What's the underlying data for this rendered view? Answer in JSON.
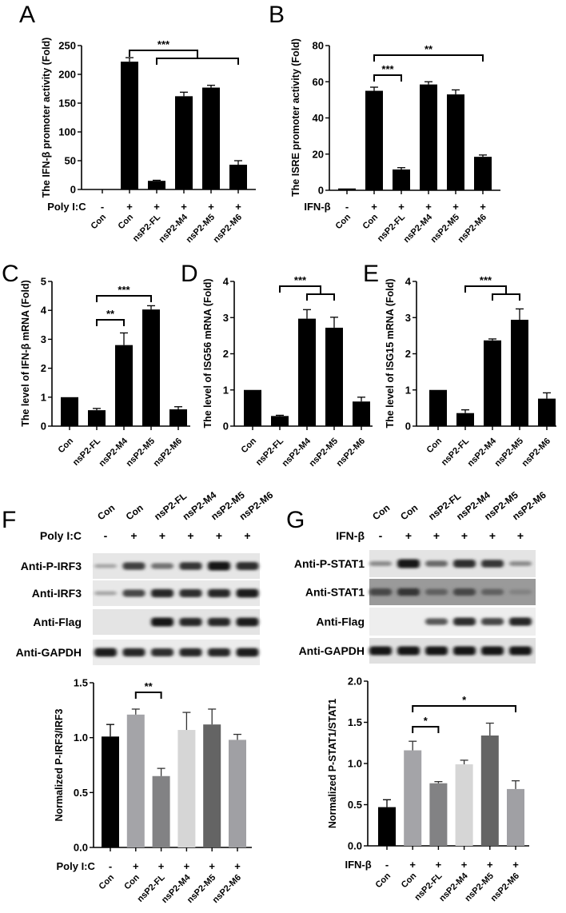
{
  "panels": {
    "A": "A",
    "B": "B",
    "C": "C",
    "D": "D",
    "E": "E",
    "F": "F",
    "G": "G"
  },
  "chart_data": [
    {
      "id": "A",
      "type": "bar",
      "title": "",
      "ylabel": "The IFN-β promoter activity (Fold)",
      "xlabel": "",
      "ylim": [
        0,
        250
      ],
      "yticks": [
        0,
        50,
        100,
        150,
        200,
        250
      ],
      "treatment_label": "Poly I:C",
      "treatment": [
        "-",
        "+",
        "+",
        "+",
        "+",
        "+"
      ],
      "categories": [
        "Con",
        "Con",
        "nsP2-FL",
        "nsP2-M4",
        "nsP2-M5",
        "nsP2-M6"
      ],
      "values": [
        0,
        222,
        15,
        162,
        177,
        43
      ],
      "errors": [
        0,
        7,
        1,
        7,
        4,
        7
      ],
      "colors": [
        "#000000",
        "#000000",
        "#000000",
        "#000000",
        "#000000",
        "#000000"
      ],
      "significance": [
        {
          "label": "***",
          "from": 1,
          "to": [
            2,
            5
          ],
          "type": "nested"
        }
      ],
      "grid": false
    },
    {
      "id": "B",
      "type": "bar",
      "ylabel": "The ISRE promoter activity (Fold)",
      "ylim": [
        0,
        80
      ],
      "yticks": [
        0,
        20,
        40,
        60,
        80
      ],
      "treatment_label": "IFN-β",
      "treatment": [
        "-",
        "+",
        "+",
        "+",
        "+",
        "+"
      ],
      "categories": [
        "Con",
        "Con",
        "nsP2-FL",
        "nsP2-M4",
        "nsP2-M5",
        "nsP2-M6"
      ],
      "values": [
        1,
        55,
        11.5,
        58.5,
        53,
        18.5
      ],
      "errors": [
        0,
        2,
        1,
        1.5,
        2.5,
        1
      ],
      "colors": [
        "#000000",
        "#000000",
        "#000000",
        "#000000",
        "#000000",
        "#000000"
      ],
      "significance": [
        {
          "label": "***",
          "from": 1,
          "to": 2
        },
        {
          "label": "**",
          "from": 1,
          "to": 5
        }
      ],
      "grid": false
    },
    {
      "id": "C",
      "type": "bar",
      "ylabel": "The level of IFN-β mRNA (Fold)",
      "ylim": [
        0,
        5
      ],
      "yticks": [
        0,
        1,
        2,
        3,
        4,
        5
      ],
      "categories": [
        "Con",
        "nsP2-FL",
        "nsP2-M4",
        "nsP2-M5",
        "nsP2-M6"
      ],
      "values": [
        1.0,
        0.55,
        2.8,
        4.03,
        0.58
      ],
      "errors": [
        0,
        0.06,
        0.42,
        0.13,
        0.09
      ],
      "colors": [
        "#000000",
        "#000000",
        "#000000",
        "#000000",
        "#000000"
      ],
      "significance": [
        {
          "label": "**",
          "from": 1,
          "to": 2
        },
        {
          "label": "***",
          "from": 1,
          "to": 3
        }
      ],
      "grid": false
    },
    {
      "id": "D",
      "type": "bar",
      "ylabel": "The level of ISG56 mRNA (Fold)",
      "ylim": [
        0,
        4
      ],
      "yticks": [
        0,
        1,
        2,
        3,
        4
      ],
      "categories": [
        "Con",
        "nsP2-FL",
        "nsP2-M4",
        "nsP2-M5",
        "nsP2-M6"
      ],
      "values": [
        1.0,
        0.28,
        2.97,
        2.72,
        0.68
      ],
      "errors": [
        0,
        0.02,
        0.25,
        0.29,
        0.12
      ],
      "colors": [
        "#000000",
        "#000000",
        "#000000",
        "#000000",
        "#000000"
      ],
      "significance": [
        {
          "label": "***",
          "from": 1,
          "to": [
            2,
            3
          ],
          "type": "nested"
        }
      ],
      "grid": false
    },
    {
      "id": "E",
      "type": "bar",
      "ylabel": "The level of ISG15 mRNA (Fold)",
      "ylim": [
        0,
        4
      ],
      "yticks": [
        0,
        1,
        2,
        3,
        4
      ],
      "categories": [
        "Con",
        "nsP2-FL",
        "nsP2-M4",
        "nsP2-M5",
        "nsP2-M6"
      ],
      "values": [
        1.0,
        0.36,
        2.37,
        2.94,
        0.76
      ],
      "errors": [
        0,
        0.09,
        0.04,
        0.3,
        0.16
      ],
      "colors": [
        "#000000",
        "#000000",
        "#000000",
        "#000000",
        "#000000"
      ],
      "significance": [
        {
          "label": "***",
          "from": 1,
          "to": [
            2,
            3
          ],
          "type": "nested"
        }
      ],
      "grid": false
    },
    {
      "id": "F-quant",
      "type": "bar",
      "ylabel": "Normalized P-IRF3/IRF3",
      "ylim": [
        0,
        1.5
      ],
      "yticks": [
        "0.0",
        "0.5",
        "1.0",
        "1.5"
      ],
      "treatment_label": "Poly I:C",
      "treatment": [
        "-",
        "+",
        "+",
        "+",
        "+",
        "+"
      ],
      "categories": [
        "Con",
        "Con",
        "nsP2-FL",
        "nsP2-M4",
        "nsP2-M5",
        "nsP2-M6"
      ],
      "values": [
        1.01,
        1.21,
        0.65,
        1.07,
        1.12,
        0.98
      ],
      "errors": [
        0.11,
        0.05,
        0.07,
        0.16,
        0.14,
        0.05
      ],
      "colors": [
        "#000000",
        "#a4a4a8",
        "#828284",
        "#d6d6d6",
        "#646464",
        "#a0a0a4"
      ],
      "significance": [
        {
          "label": "**",
          "from": 1,
          "to": 2
        }
      ],
      "grid": false
    },
    {
      "id": "G-quant",
      "type": "bar",
      "ylabel": "Normalized P-STAT1/STAT1",
      "ylim": [
        0,
        2.0
      ],
      "yticks": [
        "0.0",
        "0.5",
        "1.0",
        "1.5",
        "2.0"
      ],
      "treatment_label": "IFN-β",
      "treatment": [
        "-",
        "+",
        "+",
        "+",
        "+",
        "+"
      ],
      "categories": [
        "Con",
        "Con",
        "nsP2-FL",
        "nsP2-M4",
        "nsP2-M5",
        "nsP2-M6"
      ],
      "values": [
        0.47,
        1.16,
        0.76,
        0.99,
        1.34,
        0.69
      ],
      "errors": [
        0.09,
        0.11,
        0.02,
        0.05,
        0.15,
        0.1
      ],
      "colors": [
        "#000000",
        "#a4a4a8",
        "#828284",
        "#d6d6d6",
        "#646464",
        "#a0a0a4"
      ],
      "significance": [
        {
          "label": "*",
          "from": 1,
          "to": 2
        },
        {
          "label": "*",
          "from": 1,
          "to": 5
        }
      ],
      "grid": false
    }
  ],
  "blots": {
    "F": {
      "lanes": [
        "Con",
        "Con",
        "nsP2-FL",
        "nsP2-M4",
        "nsP2-M5",
        "nsP2-M6"
      ],
      "treatment_label": "Poly I:C",
      "treatment": [
        "-",
        "+",
        "+",
        "+",
        "+",
        "+"
      ],
      "rows": [
        {
          "label": "Anti-P-IRF3",
          "intensity": [
            0.15,
            0.75,
            0.45,
            0.8,
            1.0,
            0.85
          ],
          "bg": "#e6e6e6"
        },
        {
          "label": "Anti-IRF3",
          "intensity": [
            0.15,
            0.7,
            0.9,
            0.85,
            0.9,
            0.95
          ],
          "bg": "#e8e8e8"
        },
        {
          "label": "Anti-Flag",
          "intensity": [
            0.0,
            0.0,
            1.0,
            0.9,
            0.9,
            0.95
          ],
          "bg": "#e4e4e4"
        },
        {
          "label": "Anti-GAPDH",
          "intensity": [
            0.95,
            0.9,
            0.85,
            0.9,
            0.9,
            0.95
          ],
          "bg": "#ececec"
        }
      ]
    },
    "G": {
      "lanes": [
        "Con",
        "Con",
        "nsP2-FL",
        "nsP2-M4",
        "nsP2-M5",
        "nsP2-M6"
      ],
      "treatment_label": "IFN-β",
      "treatment": [
        "-",
        "+",
        "+",
        "+",
        "+",
        "+"
      ],
      "rows": [
        {
          "label": "Anti-P-STAT1",
          "intensity": [
            0.3,
            1.0,
            0.5,
            0.85,
            0.8,
            0.3
          ],
          "bg": "#e4e4e4"
        },
        {
          "label": "Anti-STAT1",
          "intensity": [
            0.7,
            0.8,
            0.55,
            0.7,
            0.55,
            0.35
          ],
          "bg": "#9a9a9a"
        },
        {
          "label": "Anti-Flag",
          "intensity": [
            0.0,
            0.0,
            0.6,
            0.85,
            0.7,
            0.9
          ],
          "bg": "#eeeeee"
        },
        {
          "label": "Anti-GAPDH",
          "intensity": [
            1.0,
            1.0,
            1.0,
            1.0,
            1.0,
            1.0
          ],
          "bg": "#e0e0e0"
        }
      ]
    }
  }
}
